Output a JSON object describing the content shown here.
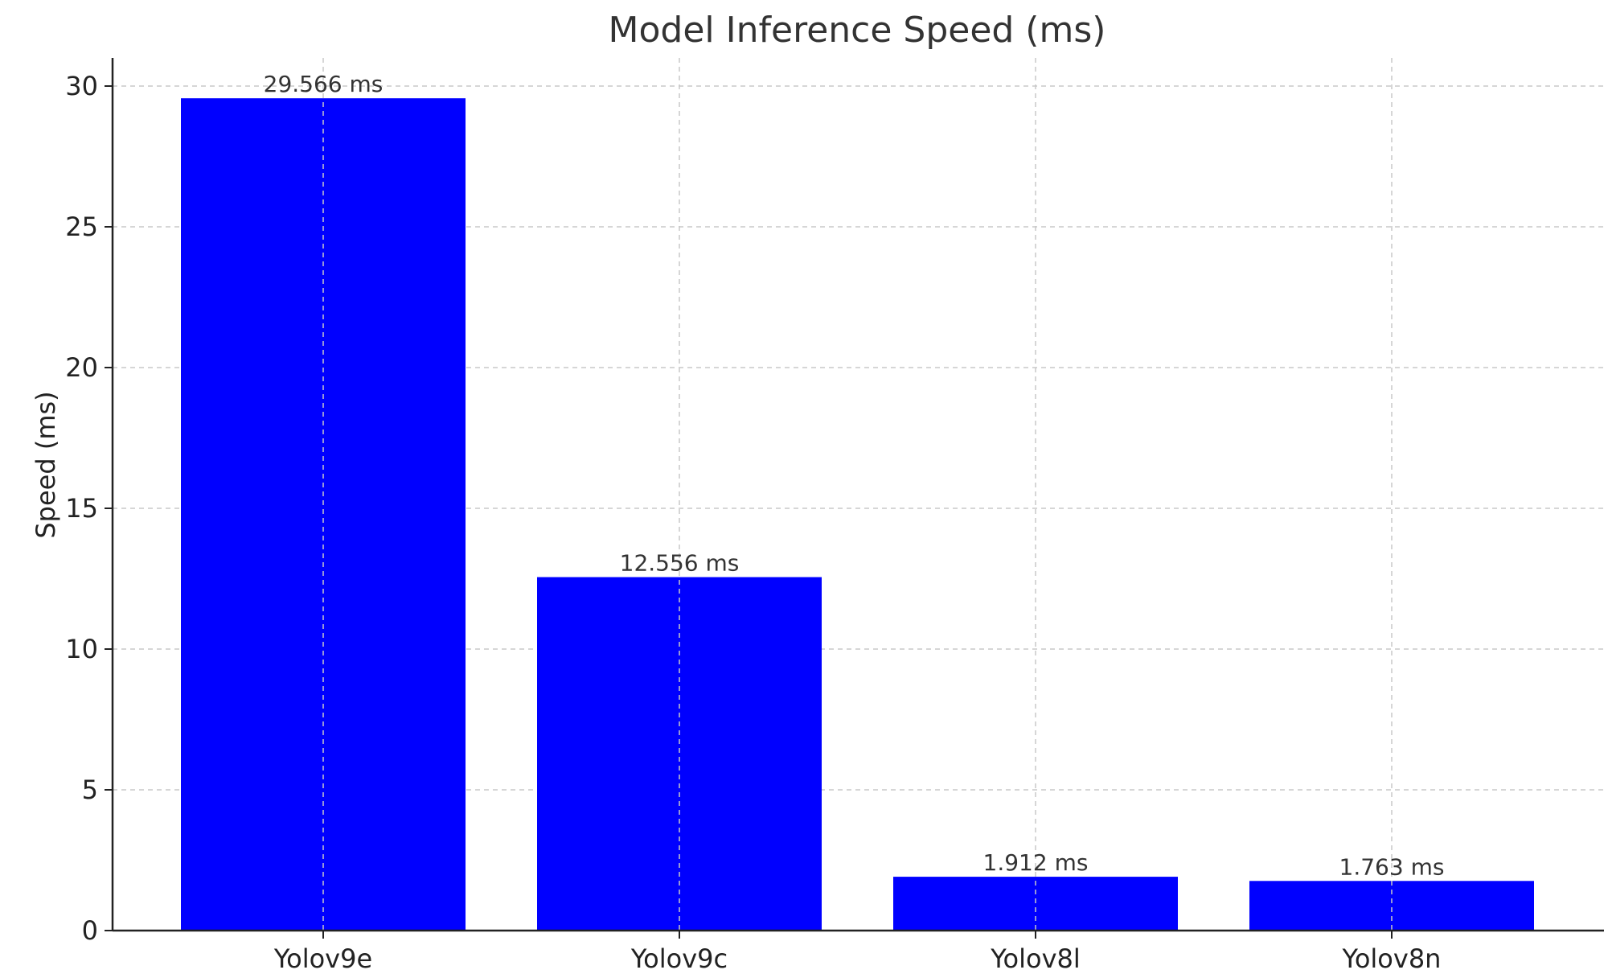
{
  "chart_data": {
    "type": "bar",
    "title": "Model Inference Speed (ms)",
    "xlabel": "",
    "ylabel": "Speed (ms)",
    "categories": [
      "Yolov9e",
      "Yolov9c",
      "Yolov8l",
      "Yolov8n"
    ],
    "values": [
      29.566,
      12.556,
      1.912,
      1.763
    ],
    "data_labels": [
      "29.566 ms",
      "12.556 ms",
      "1.912 ms",
      "1.763 ms"
    ],
    "ylim": [
      0,
      31
    ],
    "yticks": [
      0,
      5,
      10,
      15,
      20,
      25,
      30
    ],
    "grid": true,
    "bar_color": "#0000ff"
  }
}
